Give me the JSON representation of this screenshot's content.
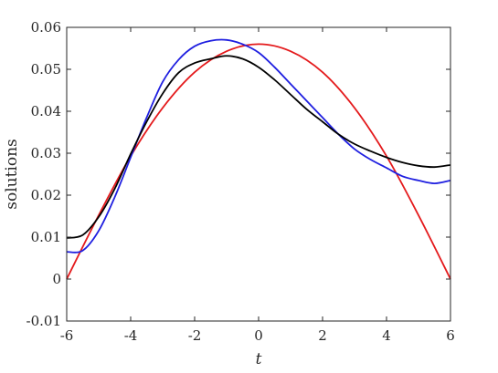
{
  "chart_data": {
    "type": "line",
    "xlabel": "t",
    "ylabel": "solutions",
    "xlim": [
      -6,
      6
    ],
    "ylim": [
      -0.01,
      0.06
    ],
    "xticks": [
      -6,
      -4,
      -2,
      0,
      2,
      4,
      6
    ],
    "xtick_labels": [
      "-6",
      "-4",
      "-2",
      "0",
      "2",
      "4",
      "6"
    ],
    "yticks": [
      -0.01,
      0,
      0.01,
      0.02,
      0.03,
      0.04,
      0.05,
      0.06
    ],
    "ytick_labels": [
      "-0.01",
      "0",
      "0.01",
      "0.02",
      "0.03",
      "0.04",
      "0.05",
      "0.06"
    ],
    "grid": false,
    "series": [
      {
        "color": "#e41a1c",
        "x": [
          -6,
          -5,
          -4,
          -3,
          -2,
          -1,
          0,
          1,
          2,
          3,
          4,
          5,
          6
        ],
        "y": [
          0.0,
          0.0152,
          0.0293,
          0.0408,
          0.0493,
          0.0543,
          0.056,
          0.0543,
          0.0493,
          0.0408,
          0.0293,
          0.0152,
          0.0
        ]
      },
      {
        "color": "#1f1fe0",
        "x": [
          -6,
          -5.5,
          -5,
          -4.5,
          -4,
          -3.5,
          -3,
          -2.5,
          -2,
          -1.5,
          -1,
          -0.5,
          0,
          0.5,
          1,
          1.5,
          2,
          2.5,
          3,
          3.5,
          4,
          4.5,
          5,
          5.5,
          6
        ],
        "y": [
          0.0065,
          0.0068,
          0.0115,
          0.0195,
          0.029,
          0.0385,
          0.047,
          0.0523,
          0.0555,
          0.0568,
          0.057,
          0.056,
          0.054,
          0.0505,
          0.0465,
          0.0425,
          0.0385,
          0.0345,
          0.031,
          0.0285,
          0.0265,
          0.0245,
          0.0235,
          0.0228,
          0.0235
        ]
      },
      {
        "color": "#000000",
        "x": [
          -6,
          -5.5,
          -5,
          -4.5,
          -4,
          -3.5,
          -3,
          -2.5,
          -2,
          -1.5,
          -1,
          -0.5,
          0,
          0.5,
          1,
          1.5,
          2,
          2.5,
          3,
          3.5,
          4,
          4.5,
          5,
          5.5,
          6
        ],
        "y": [
          0.0098,
          0.0105,
          0.0148,
          0.0215,
          0.0298,
          0.0375,
          0.0442,
          0.0492,
          0.0515,
          0.0525,
          0.0532,
          0.0525,
          0.0505,
          0.0475,
          0.044,
          0.0405,
          0.0375,
          0.0345,
          0.0322,
          0.0305,
          0.029,
          0.0278,
          0.027,
          0.0267,
          0.0272
        ]
      }
    ]
  }
}
